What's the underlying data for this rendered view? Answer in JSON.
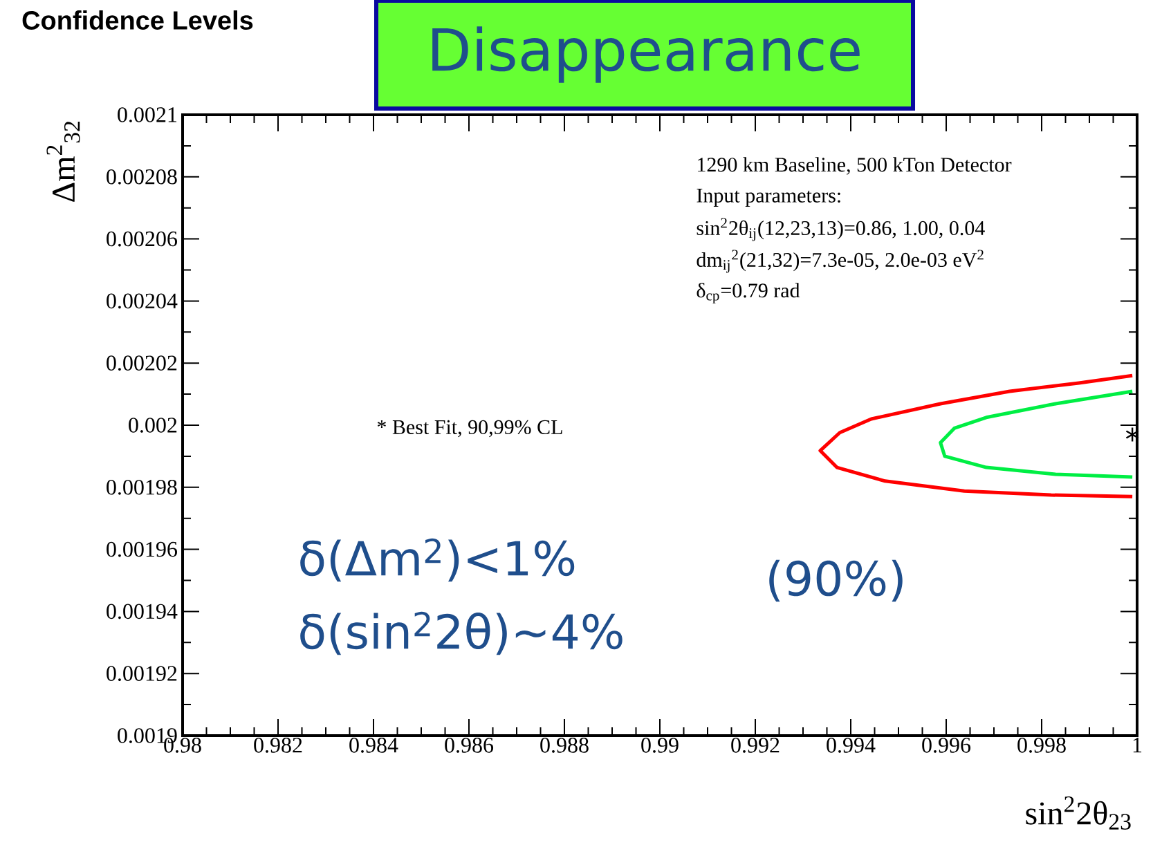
{
  "chart_data": {
    "type": "line",
    "title": "Confidence Levels",
    "subtitle": "Disappearance",
    "xlabel": "sin$^{2}$2θ$_{23}$",
    "ylabel": "Δm$^{2}$$_{32}$",
    "xlim": [
      0.98,
      1
    ],
    "ylim": [
      0.0019,
      0.0021
    ],
    "xticks": [
      0.98,
      0.982,
      0.984,
      0.986,
      0.988,
      0.99,
      0.992,
      0.994,
      0.996,
      0.998,
      1
    ],
    "yticks": [
      0.0019,
      0.00192,
      0.00194,
      0.00196,
      0.00198,
      0.002,
      0.00202,
      0.00204,
      0.00206,
      0.00208,
      0.0021
    ],
    "series": [
      {
        "color": "#ff0000",
        "x": [
          0.9999,
          0.99878,
          0.99733,
          0.99588,
          0.99443,
          0.99377,
          0.99336,
          0.99371,
          0.99472,
          0.99638,
          0.9982,
          0.9999
        ],
        "values": [
          0.002016,
          0.0020136,
          0.0020109,
          0.0020069,
          0.002002,
          0.0019976,
          0.0019918,
          0.0019864,
          0.001982,
          0.0019788,
          0.0019775,
          0.001977
        ]
      },
      {
        "color": "#00ee44",
        "x": [
          0.9999,
          0.99829,
          0.99684,
          0.99617,
          0.99588,
          0.99597,
          0.99684,
          0.99829,
          0.9999
        ],
        "values": [
          0.0020109,
          0.0020069,
          0.0020025,
          0.001999,
          0.0019944,
          0.00199,
          0.0019864,
          0.0019842,
          0.0019833
        ]
      },
      {
        "type": "scatter",
        "marker": "cross",
        "color": "#000000",
        "x": [
          0.9999
        ],
        "values": [
          0.001997
        ]
      }
    ],
    "annotations": [
      "1290 km Baseline, 500 kTon Detector",
      "Input parameters:",
      "sin$^{2}$2θ$_{ij}$(12,23,13)=0.86, 1.00, 0.04",
      "dm$_{ij}$$^{2}$(21,32)=7.3e-05, 2.0e-03 eV$^{2}$",
      "δ$_{cp}$=0.79 rad",
      "* Best Fit, 90,99% CL",
      "δ(Δm$^{2}$)<1%",
      "δ(sin$^{2}$2θ)~4%",
      "(90%)"
    ]
  }
}
